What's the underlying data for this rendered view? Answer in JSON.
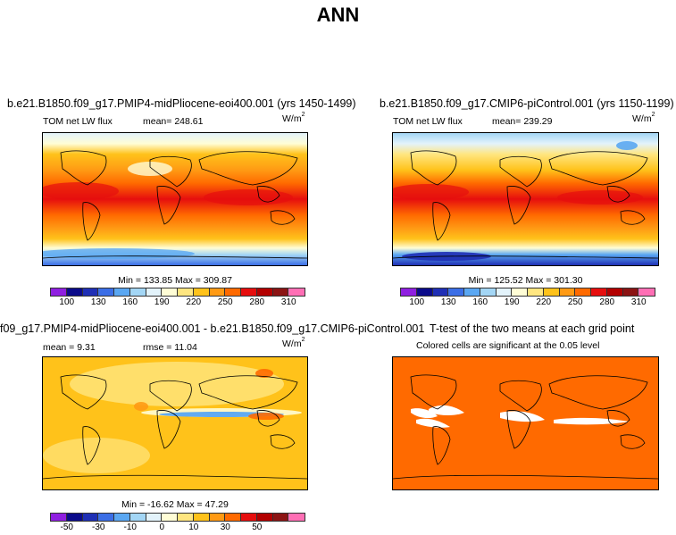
{
  "page": {
    "title": "ANN"
  },
  "panels": [
    {
      "title": "b.e21.B1850.f09_g17.PMIP4-midPliocene-eoi400.001 (yrs 1450-1499)",
      "left_text": "TOM net LW flux",
      "stat_text": "mean= 248.61",
      "units_base": "W/m",
      "units_exp": "2",
      "minmax": "Min = 133.85 Max = 309.87",
      "colorbar_labels": [
        "100",
        "130",
        "160",
        "190",
        "220",
        "250",
        "280",
        "310"
      ]
    },
    {
      "title": "b.e21.B1850.f09_g17.CMIP6-piControl.001 (yrs 1150-1199)",
      "left_text": "TOM net LW flux",
      "stat_text": "mean= 239.29",
      "units_base": "W/m",
      "units_exp": "2",
      "minmax": "Min = 125.52 Max = 301.30",
      "colorbar_labels": [
        "100",
        "130",
        "160",
        "190",
        "220",
        "250",
        "280",
        "310"
      ]
    },
    {
      "title": "f09_g17.PMIP4-midPliocene-eoi400.001 - b.e21.B1850.f09_g17.CMIP6-piControl.001",
      "left_text": "mean =    9.31",
      "stat_text": "rmse =   11.04",
      "units_base": "W/m",
      "units_exp": "2",
      "minmax": "Min = -16.62 Max =  47.29",
      "colorbar_labels": [
        "-50",
        "-30",
        "-10",
        "0",
        "10",
        "30",
        "50"
      ]
    },
    {
      "title": "T-test of the two means at each grid point",
      "subtitle": "Colored cells are significant at the 0.05 level"
    }
  ],
  "colors": {
    "full_scale": [
      "#8f1fe0",
      "#0b0b8a",
      "#1f2fb5",
      "#3b6ee6",
      "#5aa7f2",
      "#a3d6f5",
      "#e3f3fb",
      "#fffdd6",
      "#ffe680",
      "#ffc21a",
      "#ff9a14",
      "#ff6a00",
      "#e60e0e",
      "#b30000",
      "#8c1414",
      "#ff6fb5"
    ],
    "diff_scale": [
      "#8f1fe0",
      "#0b0b8a",
      "#1f2fb5",
      "#3b6ee6",
      "#5aa7f2",
      "#a3d6f5",
      "#e3f3fb",
      "#fffdd6",
      "#ffe680",
      "#ffc21a",
      "#ff9a14",
      "#ff6a00",
      "#e60e0e",
      "#b30000",
      "#8c1414",
      "#ff6fb5"
    ],
    "significant": "#ff6a00"
  }
}
